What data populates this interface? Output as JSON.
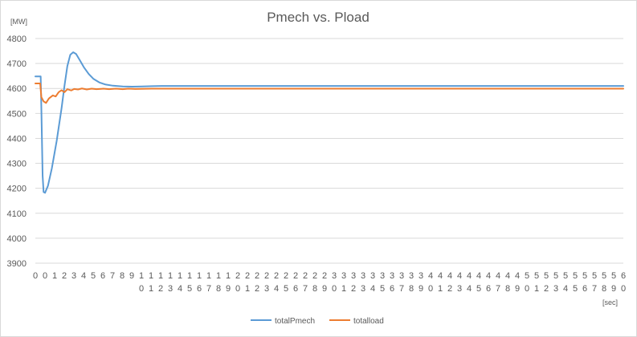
{
  "chart_data": {
    "type": "line",
    "title": "Pmech vs. Pload",
    "ylabel": "[MW]",
    "xlabel": "[sec]",
    "ylim": [
      3900,
      4800
    ],
    "yticks": [
      "4800",
      "4700",
      "4600",
      "4500",
      "4400",
      "4300",
      "4200",
      "4100",
      "4000",
      "3900"
    ],
    "xticks": [
      "0",
      "0",
      "1",
      "2",
      "3",
      "4",
      "5",
      "6",
      "7",
      "8",
      "9",
      "10",
      "11",
      "12",
      "13",
      "14",
      "15",
      "16",
      "17",
      "18",
      "19",
      "20",
      "21",
      "22",
      "23",
      "24",
      "25",
      "26",
      "27",
      "28",
      "29",
      "30",
      "31",
      "32",
      "33",
      "34",
      "35",
      "36",
      "37",
      "38",
      "39",
      "40",
      "41",
      "42",
      "43",
      "44",
      "45",
      "46",
      "47",
      "48",
      "49",
      "50",
      "51",
      "52",
      "53",
      "54",
      "55",
      "56",
      "57",
      "58",
      "59",
      "60"
    ],
    "xlim": [
      0,
      60.6
    ],
    "legend_position": "bottom",
    "grid": true,
    "series": [
      {
        "name": "totalPmech",
        "color": "#5b9bd5",
        "points": [
          [
            0,
            4648
          ],
          [
            0.55,
            4648
          ],
          [
            0.62,
            4520
          ],
          [
            0.75,
            4250
          ],
          [
            0.85,
            4185
          ],
          [
            1.0,
            4182
          ],
          [
            1.3,
            4210
          ],
          [
            1.7,
            4280
          ],
          [
            2.2,
            4390
          ],
          [
            2.7,
            4520
          ],
          [
            3.0,
            4610
          ],
          [
            3.3,
            4690
          ],
          [
            3.6,
            4735
          ],
          [
            3.9,
            4745
          ],
          [
            4.2,
            4738
          ],
          [
            4.6,
            4712
          ],
          [
            5.0,
            4685
          ],
          [
            5.5,
            4658
          ],
          [
            6.0,
            4638
          ],
          [
            6.6,
            4624
          ],
          [
            7.2,
            4616
          ],
          [
            8.0,
            4611
          ],
          [
            9.0,
            4608
          ],
          [
            10.0,
            4607
          ],
          [
            11.0,
            4608
          ],
          [
            12.0,
            4609
          ],
          [
            13.0,
            4610
          ],
          [
            20.0,
            4610
          ],
          [
            40.0,
            4610
          ],
          [
            60.6,
            4610
          ]
        ]
      },
      {
        "name": "totalload",
        "color": "#ed7d31",
        "points": [
          [
            0,
            4620
          ],
          [
            0.5,
            4620
          ],
          [
            0.62,
            4565
          ],
          [
            0.85,
            4548
          ],
          [
            1.1,
            4542
          ],
          [
            1.4,
            4560
          ],
          [
            1.8,
            4572
          ],
          [
            2.1,
            4568
          ],
          [
            2.4,
            4585
          ],
          [
            2.7,
            4593
          ],
          [
            3.0,
            4585
          ],
          [
            3.3,
            4597
          ],
          [
            3.7,
            4592
          ],
          [
            4.0,
            4598
          ],
          [
            4.4,
            4596
          ],
          [
            4.8,
            4600
          ],
          [
            5.3,
            4596
          ],
          [
            5.8,
            4599
          ],
          [
            6.3,
            4597
          ],
          [
            7.0,
            4599
          ],
          [
            7.6,
            4597
          ],
          [
            8.3,
            4599
          ],
          [
            9.0,
            4597
          ],
          [
            9.6,
            4599
          ],
          [
            10.3,
            4598
          ],
          [
            12.0,
            4599
          ],
          [
            20.0,
            4599
          ],
          [
            40.0,
            4599
          ],
          [
            60.6,
            4599
          ]
        ]
      }
    ]
  }
}
